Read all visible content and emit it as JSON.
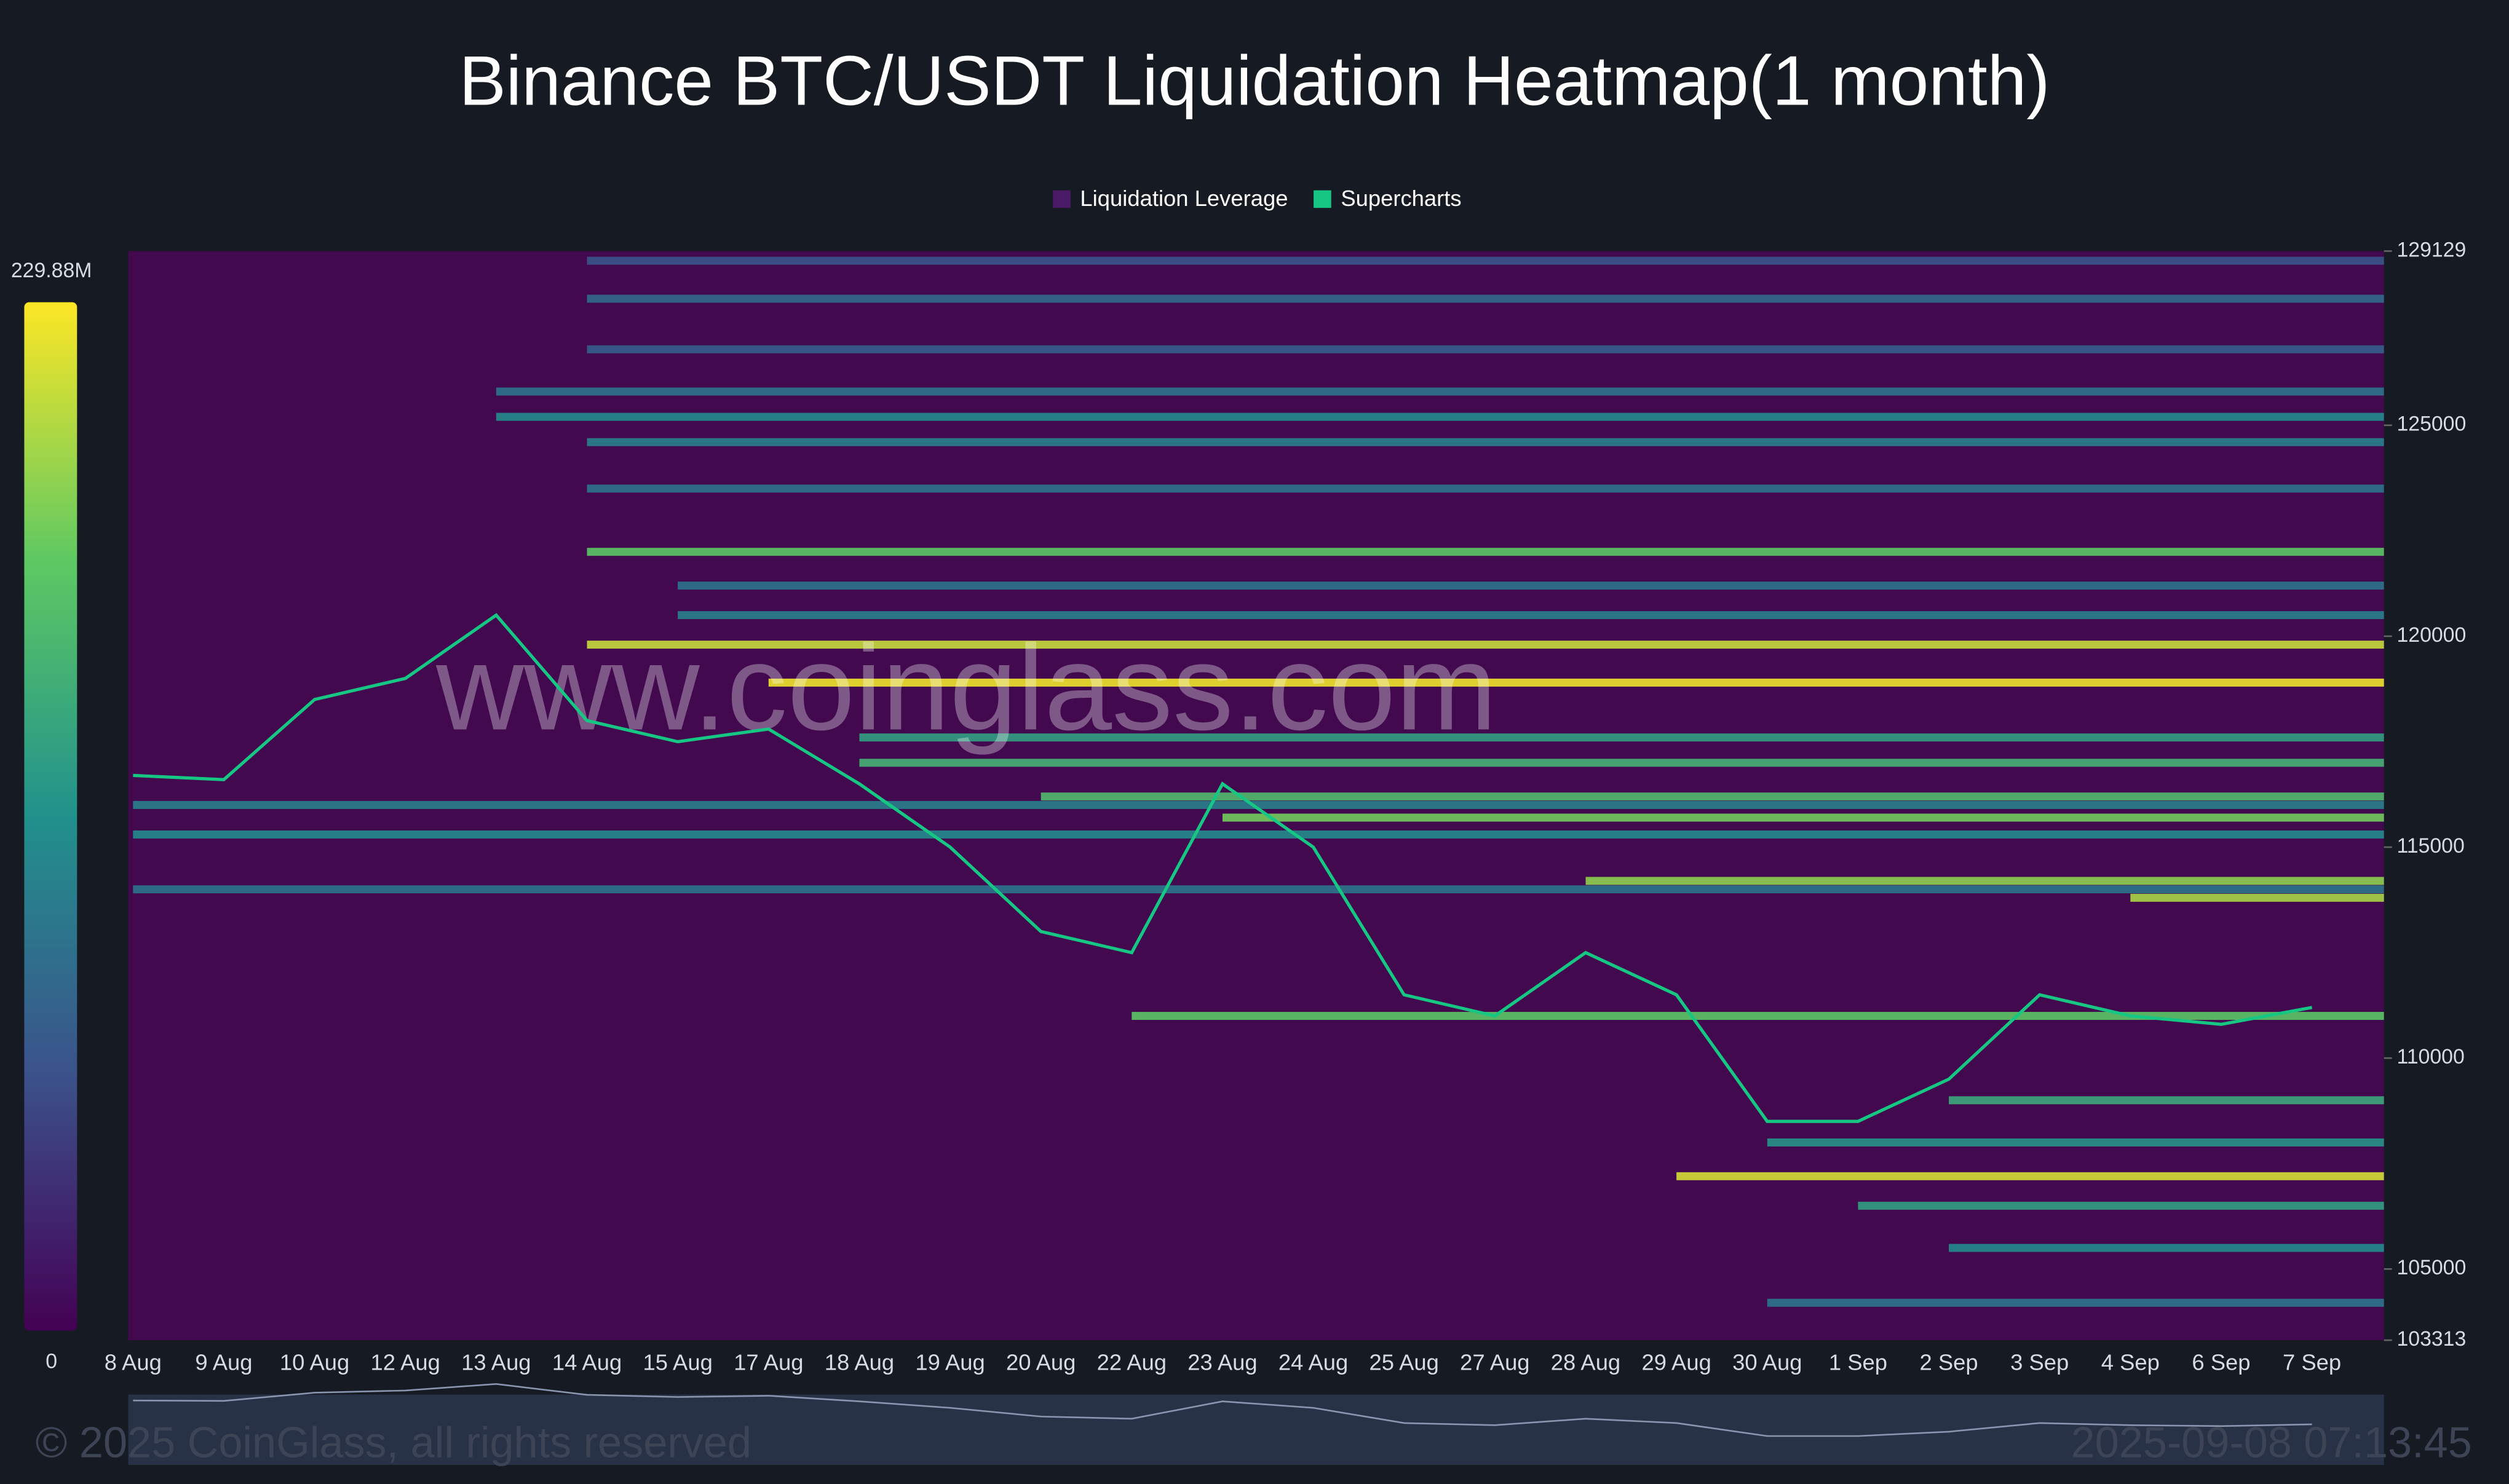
{
  "chart_data": {
    "type": "heatmap",
    "title": "Binance BTC/USDT Liquidation Heatmap(1 month)",
    "categories": [
      "8 Aug",
      "9 Aug",
      "10 Aug",
      "12 Aug",
      "13 Aug",
      "14 Aug",
      "15 Aug",
      "17 Aug",
      "18 Aug",
      "19 Aug",
      "20 Aug",
      "22 Aug",
      "23 Aug",
      "24 Aug",
      "25 Aug",
      "27 Aug",
      "28 Aug",
      "29 Aug",
      "30 Aug",
      "1 Sep",
      "2 Sep",
      "3 Sep",
      "4 Sep",
      "6 Sep",
      "7 Sep"
    ],
    "series": [
      {
        "name": "Liquidation Leverage",
        "color": "#4b1a66"
      },
      {
        "name": "Supercharts",
        "color": "#16c784",
        "values": [
          116700,
          116600,
          118500,
          119000,
          120500,
          118000,
          117500,
          117800,
          116500,
          115000,
          113000,
          112500,
          116500,
          115000,
          111500,
          111000,
          112500,
          111500,
          108500,
          108500,
          109500,
          111500,
          111000,
          110800,
          111200
        ]
      }
    ],
    "levels": {
      "prices": [
        128900,
        128000,
        126800,
        125800,
        125200,
        124600,
        123500,
        122000,
        121200,
        120500,
        119800,
        118900,
        117600,
        117000,
        116200,
        116000,
        115700,
        115300,
        114200,
        114000,
        113800,
        111000,
        109000,
        108000,
        107200,
        106500,
        105500,
        104200
      ],
      "start": [
        5,
        5,
        5,
        4,
        4,
        5,
        5,
        5,
        6,
        6,
        5,
        7,
        8,
        8,
        10,
        0,
        12,
        0,
        16,
        0,
        22,
        11,
        20,
        18,
        17,
        19,
        20,
        18
      ],
      "values": [
        60000000,
        80000000,
        70000000,
        90000000,
        110000000,
        100000000,
        90000000,
        170000000,
        90000000,
        100000000,
        210000000,
        225000000,
        130000000,
        150000000,
        160000000,
        100000000,
        180000000,
        110000000,
        190000000,
        90000000,
        200000000,
        170000000,
        140000000,
        120000000,
        215000000,
        130000000,
        110000000,
        90000000
      ]
    },
    "ylim": [
      103313,
      129129
    ],
    "yticks": [
      103313,
      105000,
      110000,
      115000,
      120000,
      125000,
      129129
    ],
    "zlim": [
      0,
      229880000
    ],
    "zticks": [
      0,
      {
        "value": 229880000,
        "label": "229.88M"
      }
    ],
    "watermark": "www.coinglass.com",
    "copyright": "© 2025 CoinGlass, all rights reserved",
    "timestamp": "2025-09-08 07:13:45"
  }
}
